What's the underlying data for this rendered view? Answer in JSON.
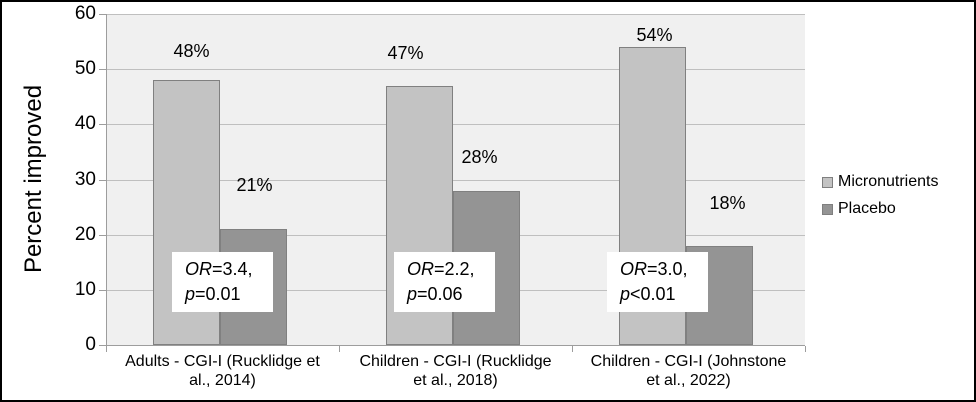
{
  "chart_data": {
    "type": "bar",
    "title": "",
    "xlabel": "",
    "ylabel": "Percent improved",
    "ylim": [
      0,
      60
    ],
    "yticks": [
      0,
      10,
      20,
      30,
      40,
      50,
      60
    ],
    "grid": true,
    "legend_position": "right",
    "plot_background": "#f0f0f0",
    "categories": [
      {
        "label": "Adults - CGI-I (Rucklidge et al., 2014)",
        "lines": [
          "Adults - CGI-I (Rucklidge et",
          "al., 2014)"
        ]
      },
      {
        "label": "Children - CGI-I (Rucklidge et al., 2018)",
        "lines": [
          "Children - CGI-I (Rucklidge",
          "et al., 2018)"
        ]
      },
      {
        "label": "Children - CGI-I (Johnstone et al., 2022)",
        "lines": [
          "Children - CGI-I (Johnstone",
          "et al., 2022)"
        ]
      }
    ],
    "series": [
      {
        "name": "Micronutrients",
        "color": "#c3c3c3",
        "values": [
          48,
          47,
          54
        ],
        "labels": [
          "48%",
          "47%",
          "54%"
        ]
      },
      {
        "name": "Placebo",
        "color": "#949494",
        "values": [
          21,
          28,
          18
        ],
        "labels": [
          "21%",
          "28%",
          "18%"
        ]
      }
    ],
    "annotations": [
      {
        "or_label": "OR",
        "or_value": "=3.4,",
        "p_label": "p",
        "p_value": "=0.01"
      },
      {
        "or_label": "OR",
        "or_value": "=2.2,",
        "p_label": "p",
        "p_value": "=0.06"
      },
      {
        "or_label": "OR",
        "or_value": "=3.0,",
        "p_label": "p",
        "p_value": "<0.01"
      }
    ]
  }
}
